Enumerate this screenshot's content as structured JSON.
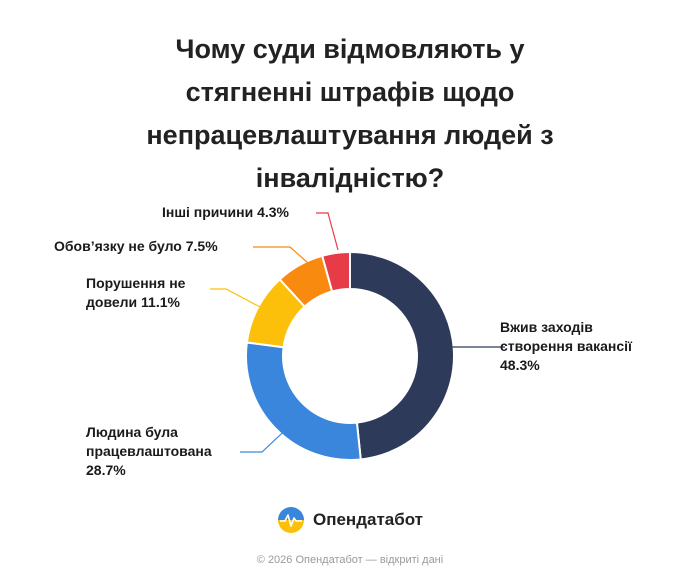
{
  "title_lines": [
    "Чому суди відмовляють у",
    "стягненні штрафів щодо",
    "непрацевлаштування людей з",
    "інвалідністю?"
  ],
  "chart_data": {
    "type": "pie",
    "title": "Чому суди відмовляють у стягненні штрафів щодо непрацевлаштування людей з інвалідністю?",
    "slices": [
      {
        "lines": [
          "Вжив заходів",
          "створення вакансії",
          "48.3%"
        ],
        "value": 48.3,
        "color": "#2d3a5a"
      },
      {
        "lines": [
          "Людина була",
          "працевлаштована",
          "28.7%"
        ],
        "value": 28.7,
        "color": "#3a86dd"
      },
      {
        "lines": [
          "Порушення не",
          "довели 11.1%"
        ],
        "value": 11.1,
        "color": "#fcc00a"
      },
      {
        "lines": [
          "Обов’язку не було 7.5%"
        ],
        "value": 7.5,
        "color": "#f98a10"
      },
      {
        "lines": [
          "Інші причини 4.3%"
        ],
        "value": 4.3,
        "color": "#e83b48"
      }
    ]
  },
  "brand": {
    "name": "Опендатабот",
    "logo_colors": [
      "#3a86dd",
      "#fcc00a"
    ]
  },
  "footer": "© 2026 Опендатабот — відкриті дані"
}
